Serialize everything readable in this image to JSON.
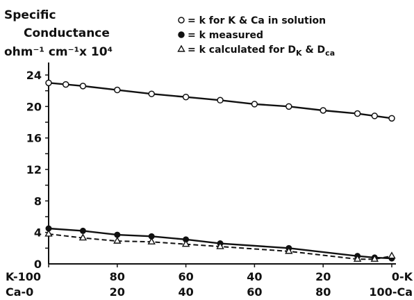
{
  "chart_data": {
    "type": "line",
    "ylabel_line1": "Specific",
    "ylabel_line2": "Conductance",
    "ylabel_line3": "ohm⁻¹ cm⁻¹x 10⁴",
    "x": [
      100,
      95,
      90,
      80,
      70,
      60,
      50,
      40,
      30,
      20,
      10,
      5,
      0
    ],
    "xlim": [
      100,
      0
    ],
    "ylim": [
      0,
      24
    ],
    "xtick_values": [
      100,
      80,
      60,
      40,
      20,
      0
    ],
    "xtick_labels_k": [
      "K-100",
      "80",
      "60",
      "40",
      "20",
      "0-K"
    ],
    "xtick_labels_ca": [
      "Ca-0",
      "20",
      "40",
      "60",
      "80",
      "100-Ca"
    ],
    "ytick_values": [
      0,
      4,
      8,
      12,
      16,
      20,
      24
    ],
    "ytick_labels": [
      "0",
      "4",
      "8",
      "12",
      "16",
      "20",
      "24"
    ],
    "series": [
      {
        "name": "k for K & Ca in solution",
        "marker": "open-circle",
        "line": "solid",
        "points": [
          [
            100,
            23.0
          ],
          [
            95,
            22.8
          ],
          [
            90,
            22.6
          ],
          [
            80,
            22.1
          ],
          [
            70,
            21.6
          ],
          [
            60,
            21.2
          ],
          [
            50,
            20.8
          ],
          [
            40,
            20.3
          ],
          [
            30,
            20.0
          ],
          [
            20,
            19.5
          ],
          [
            10,
            19.1
          ],
          [
            5,
            18.8
          ],
          [
            0,
            18.5
          ]
        ]
      },
      {
        "name": "k measured",
        "marker": "filled-circle",
        "line": "solid",
        "points": [
          [
            100,
            4.5
          ],
          [
            90,
            4.2
          ],
          [
            80,
            3.7
          ],
          [
            70,
            3.5
          ],
          [
            60,
            3.1
          ],
          [
            50,
            2.6
          ],
          [
            30,
            2.0
          ],
          [
            10,
            1.0
          ],
          [
            5,
            0.8
          ],
          [
            0,
            0.7
          ]
        ]
      },
      {
        "name": "k calculated for D_K & D_Ca",
        "marker": "open-triangle",
        "line": "dashed",
        "points": [
          [
            100,
            3.8
          ],
          [
            90,
            3.3
          ],
          [
            80,
            2.9
          ],
          [
            70,
            2.8
          ],
          [
            60,
            2.5
          ],
          [
            50,
            2.2
          ],
          [
            30,
            1.6
          ],
          [
            10,
            0.6
          ],
          [
            5,
            0.6
          ],
          [
            0,
            1.0
          ]
        ]
      }
    ],
    "legend": {
      "placement": "top-right",
      "entries": [
        {
          "symbol": "open-circle",
          "prefix": "= k  for K ",
          "amp": "&",
          "suffix": " Ca in solution"
        },
        {
          "symbol": "filled-circle",
          "prefix": "= k  measured",
          "amp": "",
          "suffix": ""
        },
        {
          "symbol": "open-triangle",
          "prefix": "= k  calculated for D",
          "sub1": "K",
          "amp": " & ",
          "mid": "D",
          "sub2": "ca"
        }
      ]
    },
    "grid": false
  }
}
